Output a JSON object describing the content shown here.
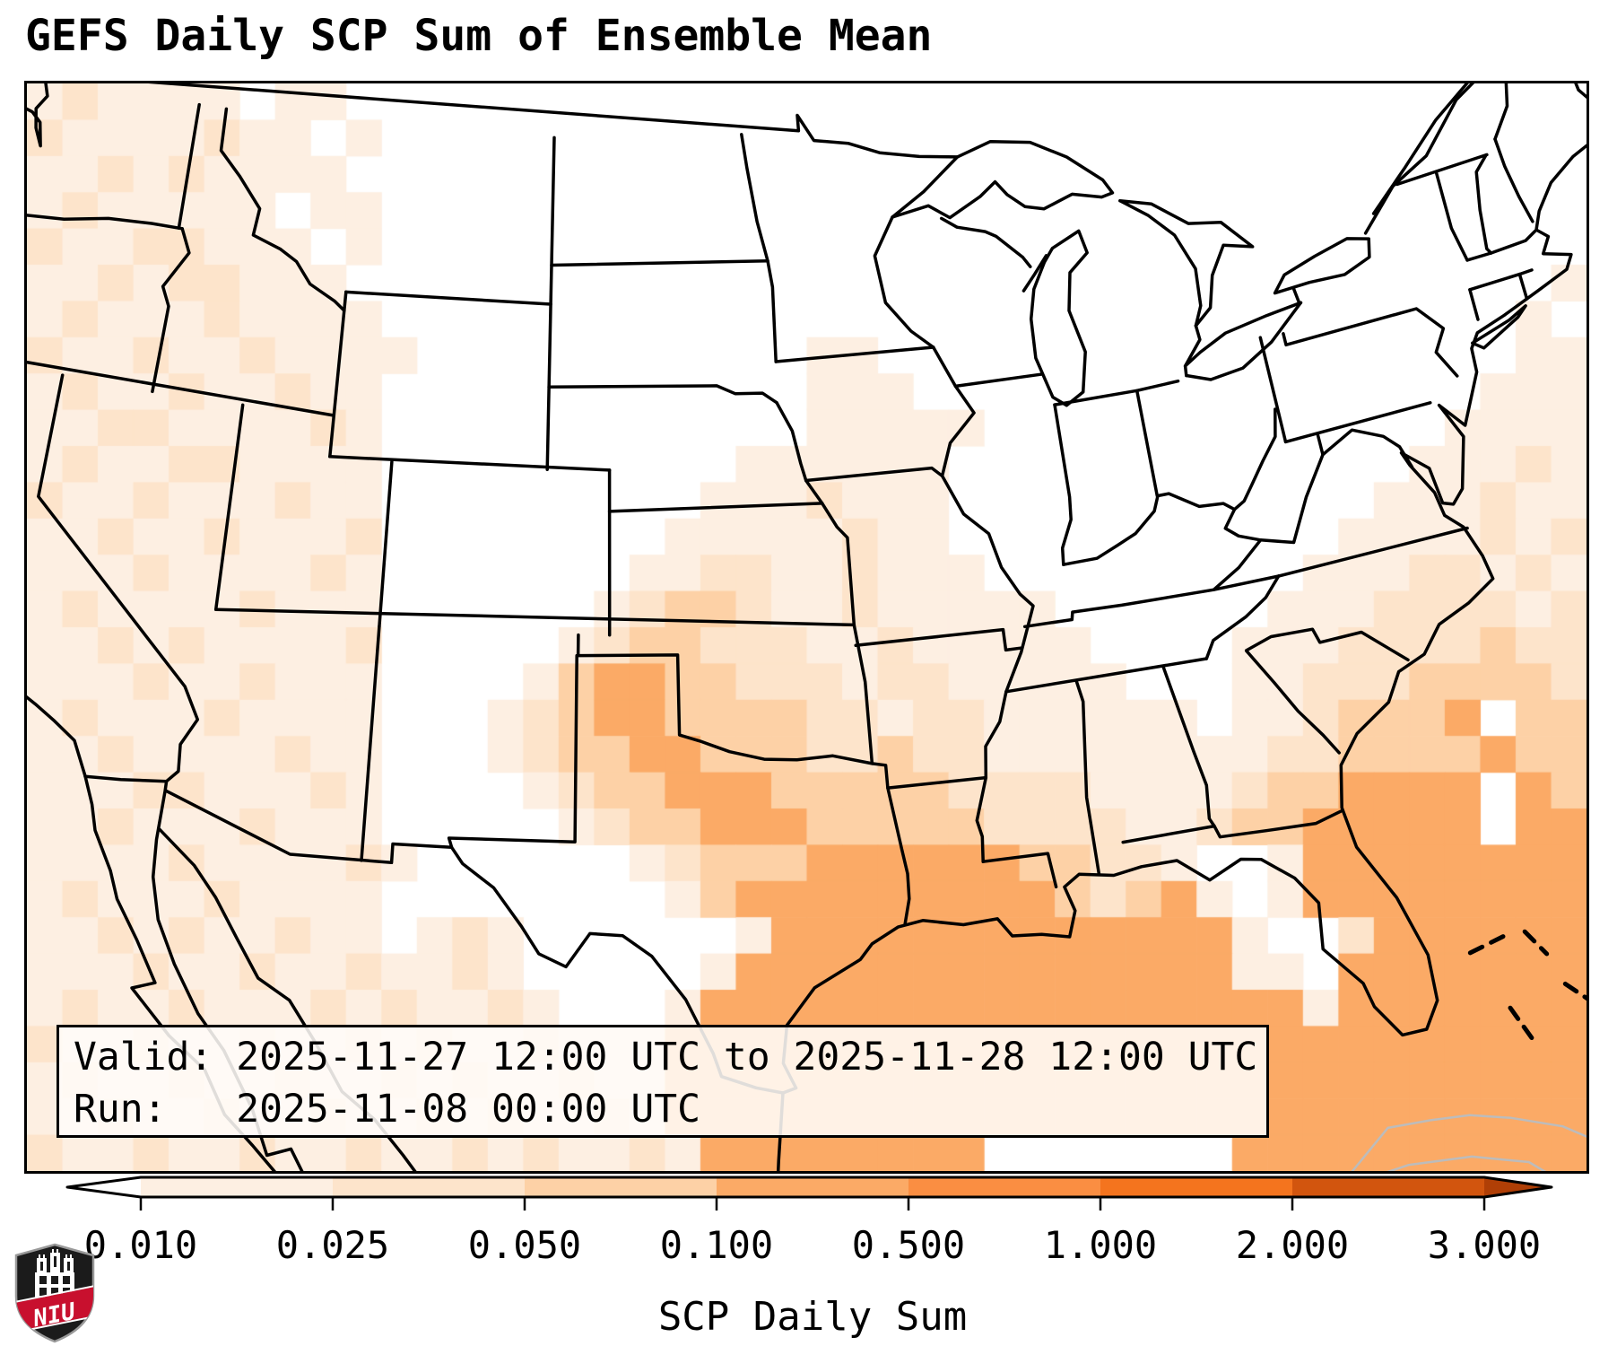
{
  "title": "GEFS Daily SCP Sum of Ensemble Mean",
  "info_box": {
    "valid_line": "Valid: 2025-11-27 12:00 UTC to 2025-11-28 12:00 UTC",
    "run_line": "Run:   2025-11-08 00:00 UTC"
  },
  "branding": {
    "logo_text": "NIU"
  },
  "chart_data": {
    "type": "heatmap",
    "title": "GEFS Daily SCP Sum of Ensemble Mean",
    "valid_period": "2025-11-27 12:00 UTC to 2025-11-28 12:00 UTC",
    "run_time": "2025-11-08 00:00 UTC",
    "colorbar": {
      "label": "SCP Daily Sum",
      "tick_labels": [
        "0.010",
        "0.025",
        "0.050",
        "0.100",
        "0.500",
        "1.000",
        "2.000",
        "3.000"
      ],
      "segment_colors": [
        "#fdefe2",
        "#fde4cb",
        "#fdd1a6",
        "#fbaa66",
        "#fa8e42",
        "#f4741e",
        "#d2550e"
      ],
      "under_color": "#ffffff",
      "over_color": "#b03f06",
      "extend": "both",
      "orientation": "horizontal"
    },
    "grid": {
      "note": "coarse screen-space raster of the plotted SCP ensemble-mean field; digit = bin index: 0:<0.010, 1:0.010-0.025, 2:0.025-0.050, 3:0.050-0.100, 4:0.100-0.500",
      "cols": 44,
      "rows": 30,
      "level_colors": [
        "#ffffff",
        "#fdefe2",
        "#fde4cb",
        "#fdd1a6",
        "#fbaa66"
      ],
      "rows_data": [
        "12111101100000000000000000000000000000000000",
        "21111211010000000000000000000000000000000000",
        "11212111100000000000000000000000000000000000",
        "12111110110000000000000000000000000000000000",
        "21122111010000000000000000000000000000000000",
        "11212211100000000000000000000000000000000001",
        "12111211110000000000000000000000000000000010",
        "21121121111000000000001100000000000000000011",
        "12112112110000000000001110000000000000000111",
        "11221111210000000000001111100000000000001111",
        "12112211110000000000111111000000000000011121",
        "21121112110000000001112111000000000000111211",
        "11211211120000000011111211000000000001111212",
        "11121111210000000112211211100000000011122121",
        "12111121110000001233211211111000000111222212",
        "11212111120000012332221121111100001112222322",
        "11121121110000134433222122111110001122233332",
        "12111211110001234433332212211111101123334 33",
        "11211112110001233443332232211111111223333433",
        "11122111210000123344433333222211112334444 43",
        "11211121110000012334443333322221123344444 44",
        "11112111121000000123334444443322100144444444",
        "12111211110000000013444444444323410144444444",
        "11212112110121000000144444444444441002444444 ",
        "11121121121121000001444444444444441104444444 ",
        "12112111212112100014444444444444444414444444 ",
        "21121121121211211144444444444444444444444444",
        "12112112112121121144444444444444444444444444",
        "11211211211212112144444444444444444444444444",
        "21121121121121211214444444400000004444444444"
      ]
    }
  }
}
